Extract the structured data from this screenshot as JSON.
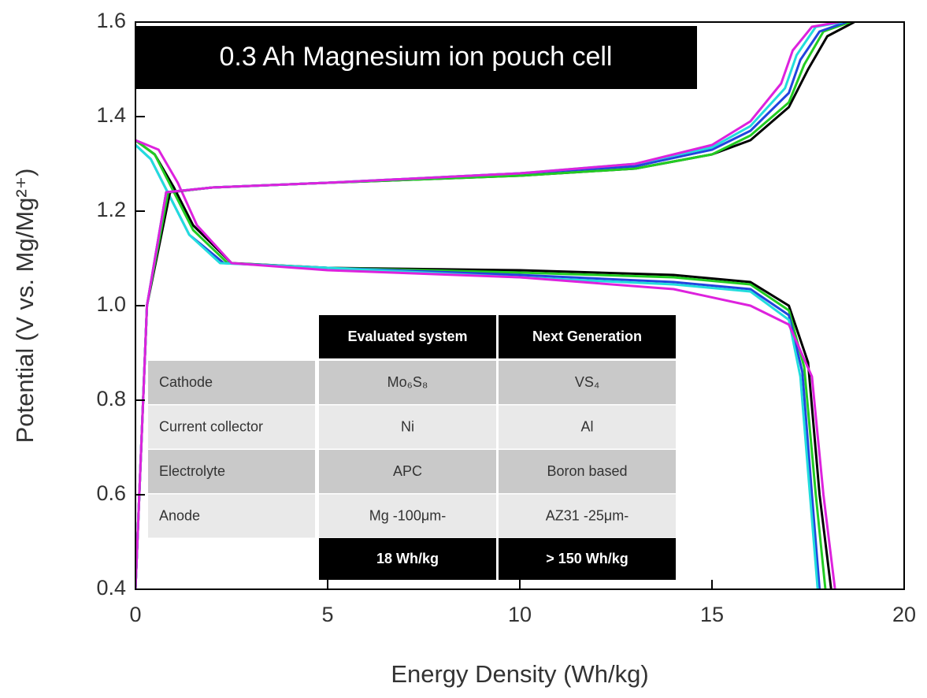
{
  "chart_data": {
    "type": "line",
    "title": "0.3 Ah Magnesium ion pouch cell",
    "x_label": "Energy Density (Wh/kg)",
    "y_label": "Potential (V vs. Mg/Mg²⁺)",
    "xlim": [
      0,
      20
    ],
    "ylim": [
      0.4,
      1.6
    ],
    "xticks": [
      0,
      5,
      10,
      15,
      20
    ],
    "yticks": [
      0.4,
      0.6,
      0.8,
      {
        "value": 1,
        "label": "1.0"
      },
      1.2,
      1.4,
      1.6
    ],
    "series": [
      {
        "color": "#000000",
        "x": [
          0,
          0.5,
          1,
          1.5,
          2.5,
          5,
          10,
          14,
          16,
          17,
          17.5,
          17.8,
          18.1
        ],
        "values": [
          1.35,
          1.32,
          1.25,
          1.17,
          1.09,
          1.08,
          1.075,
          1.065,
          1.05,
          1.0,
          0.88,
          0.6,
          0.4
        ]
      },
      {
        "color": "#22cc22",
        "x": [
          0,
          0.5,
          1,
          1.5,
          2.4,
          5,
          10,
          14,
          16,
          17,
          17.4,
          17.7,
          17.95
        ],
        "values": [
          1.35,
          1.32,
          1.24,
          1.16,
          1.09,
          1.08,
          1.07,
          1.06,
          1.045,
          0.99,
          0.87,
          0.6,
          0.4
        ]
      },
      {
        "color": "#2244dd",
        "x": [
          0,
          0.4,
          0.9,
          1.4,
          2.3,
          5,
          10,
          14,
          16,
          17,
          17.35,
          17.6,
          17.8
        ],
        "values": [
          1.34,
          1.31,
          1.23,
          1.15,
          1.09,
          1.08,
          1.065,
          1.05,
          1.035,
          0.98,
          0.86,
          0.6,
          0.4
        ]
      },
      {
        "color": "#22dddd",
        "x": [
          0,
          0.4,
          0.9,
          1.4,
          2.2,
          5,
          10,
          14,
          16,
          17,
          17.3,
          17.55,
          17.75
        ],
        "values": [
          1.34,
          1.31,
          1.23,
          1.15,
          1.09,
          1.08,
          1.06,
          1.045,
          1.03,
          0.97,
          0.85,
          0.6,
          0.4
        ]
      },
      {
        "color": "#dd22dd",
        "x": [
          0,
          0.6,
          1.1,
          1.6,
          2.5,
          5,
          10,
          14,
          16,
          17,
          17.6,
          17.9,
          18.2
        ],
        "values": [
          1.35,
          1.33,
          1.26,
          1.17,
          1.09,
          1.075,
          1.06,
          1.035,
          1.0,
          0.96,
          0.85,
          0.6,
          0.4
        ]
      },
      {
        "color": "#000000",
        "x": [
          0,
          0.3,
          0.9,
          2,
          5,
          10,
          13,
          15,
          16,
          17,
          17.5,
          18,
          18.7
        ],
        "values": [
          0.4,
          1.0,
          1.24,
          1.25,
          1.26,
          1.275,
          1.29,
          1.32,
          1.35,
          1.42,
          1.5,
          1.57,
          1.6
        ]
      },
      {
        "color": "#22cc22",
        "x": [
          0,
          0.3,
          0.85,
          2,
          5,
          10,
          13,
          15,
          16,
          17,
          17.4,
          17.9,
          18.6
        ],
        "values": [
          0.4,
          1.0,
          1.24,
          1.25,
          1.26,
          1.275,
          1.29,
          1.32,
          1.36,
          1.43,
          1.51,
          1.58,
          1.6
        ]
      },
      {
        "color": "#2244dd",
        "x": [
          0,
          0.3,
          0.8,
          2,
          5,
          10,
          13,
          15,
          16,
          17,
          17.3,
          17.8,
          18.5
        ],
        "values": [
          0.4,
          1.0,
          1.24,
          1.25,
          1.26,
          1.28,
          1.295,
          1.33,
          1.37,
          1.45,
          1.52,
          1.58,
          1.6
        ]
      },
      {
        "color": "#22dddd",
        "x": [
          0,
          0.3,
          0.8,
          2,
          5,
          10,
          13,
          15,
          16,
          16.9,
          17.2,
          17.7,
          18.4
        ],
        "values": [
          0.4,
          1.0,
          1.24,
          1.25,
          1.26,
          1.28,
          1.3,
          1.335,
          1.38,
          1.46,
          1.53,
          1.59,
          1.6
        ]
      },
      {
        "color": "#dd22dd",
        "x": [
          0,
          0.3,
          0.8,
          2,
          5,
          10,
          13,
          15,
          16,
          16.8,
          17.1,
          17.6,
          18.3
        ],
        "values": [
          0.4,
          1.0,
          1.24,
          1.25,
          1.26,
          1.28,
          1.3,
          1.34,
          1.39,
          1.47,
          1.54,
          1.59,
          1.6
        ]
      }
    ]
  },
  "table": {
    "header": [
      "Evaluated system",
      "Next Generation"
    ],
    "rows": [
      [
        "Cathode",
        "Mo₆S₈",
        "VS₄"
      ],
      [
        "Current collector",
        "Ni",
        "Al"
      ],
      [
        "Electrolyte",
        "APC",
        "Boron based"
      ],
      [
        "Anode",
        "Mg -100μm-",
        "AZ31 -25μm-"
      ]
    ],
    "footer": [
      "18 Wh/kg",
      "> 150 Wh/kg"
    ]
  }
}
